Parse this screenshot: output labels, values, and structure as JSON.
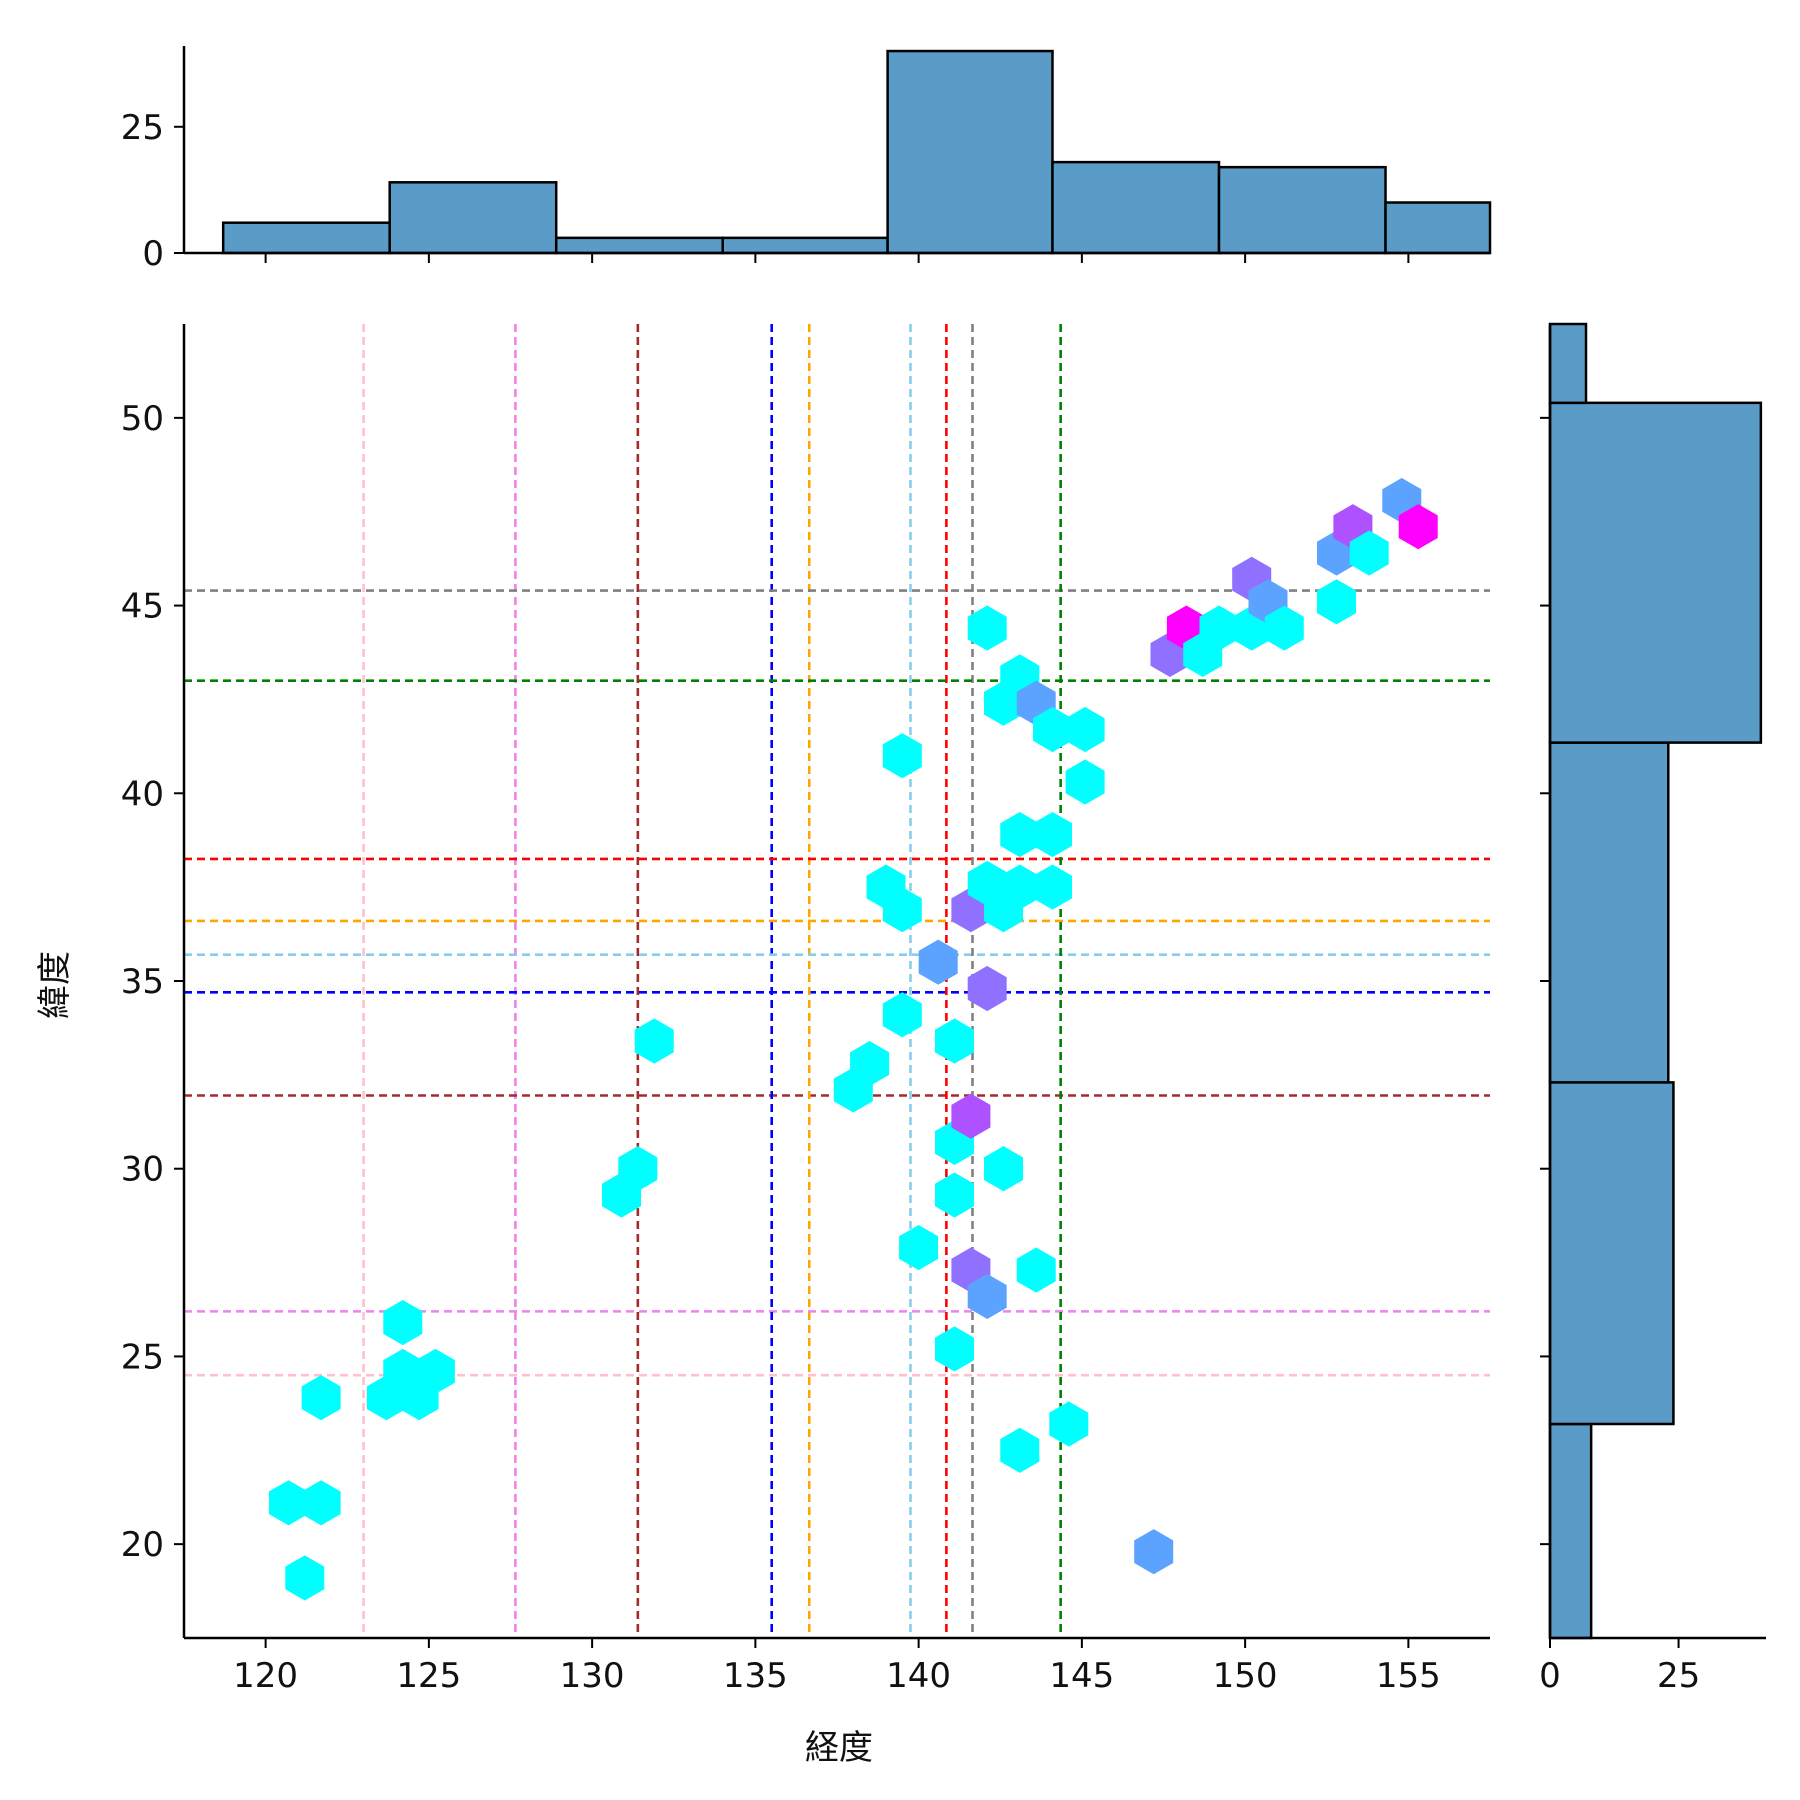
{
  "chart_data": {
    "type": "hexbin-jointplot",
    "xlabel": "経度",
    "ylabel": "緯度",
    "xlim": [
      117.5,
      157.5
    ],
    "ylim": [
      17.5,
      52.5
    ],
    "xticks": [
      120,
      125,
      130,
      135,
      140,
      145,
      150,
      155
    ],
    "yticks": [
      20,
      25,
      30,
      35,
      40,
      45,
      50
    ],
    "colormap": "cool",
    "reference_lines": [
      {
        "color": "#FFC0CB",
        "x": 123.0,
        "y": 24.5
      },
      {
        "color": "#EE82EE",
        "x": 127.65,
        "y": 26.2
      },
      {
        "color": "#A52A2A",
        "x": 131.4,
        "y": 31.95
      },
      {
        "color": "#0000FF",
        "x": 135.5,
        "y": 34.7
      },
      {
        "color": "#FFA500",
        "x": 136.65,
        "y": 36.6
      },
      {
        "color": "#87CEEB",
        "x": 139.75,
        "y": 35.7
      },
      {
        "color": "#FF0000",
        "x": 140.85,
        "y": 38.25
      },
      {
        "color": "#808080",
        "x": 141.65,
        "y": 45.4
      },
      {
        "color": "#008000",
        "x": 144.35,
        "y": 43.0
      }
    ],
    "hexbins": [
      [
        121.2,
        19.1,
        1
      ],
      [
        120.7,
        21.1,
        1
      ],
      [
        121.7,
        21.1,
        1
      ],
      [
        121.7,
        23.9,
        1
      ],
      [
        123.7,
        23.9,
        1
      ],
      [
        124.7,
        23.9,
        1
      ],
      [
        124.2,
        24.6,
        1
      ],
      [
        125.2,
        24.6,
        1
      ],
      [
        124.2,
        25.9,
        1
      ],
      [
        130.9,
        29.3,
        1
      ],
      [
        131.4,
        30.0,
        1
      ],
      [
        131.9,
        33.4,
        1
      ],
      [
        138.0,
        32.1,
        1
      ],
      [
        138.5,
        32.8,
        1
      ],
      [
        139.5,
        34.1,
        1
      ],
      [
        139.0,
        37.5,
        1
      ],
      [
        139.5,
        36.9,
        1
      ],
      [
        139.5,
        41.0,
        1
      ],
      [
        140.0,
        27.9,
        1
      ],
      [
        140.6,
        35.5,
        2
      ],
      [
        141.1,
        25.2,
        1
      ],
      [
        141.1,
        29.3,
        1
      ],
      [
        141.1,
        30.7,
        1
      ],
      [
        141.1,
        33.4,
        1
      ],
      [
        141.6,
        27.3,
        3
      ],
      [
        141.6,
        31.4,
        4
      ],
      [
        141.6,
        36.9,
        3
      ],
      [
        142.1,
        26.6,
        2
      ],
      [
        142.1,
        34.8,
        3
      ],
      [
        142.1,
        37.6,
        1
      ],
      [
        142.1,
        44.4,
        1
      ],
      [
        142.6,
        30.0,
        1
      ],
      [
        142.6,
        36.9,
        1
      ],
      [
        142.6,
        42.4,
        1
      ],
      [
        143.1,
        22.5,
        1
      ],
      [
        143.1,
        37.5,
        1
      ],
      [
        143.1,
        38.9,
        1
      ],
      [
        143.1,
        43.1,
        1
      ],
      [
        143.6,
        27.3,
        1
      ],
      [
        143.6,
        42.4,
        2
      ],
      [
        144.1,
        38.9,
        1
      ],
      [
        144.1,
        37.5,
        1
      ],
      [
        144.1,
        41.7,
        1
      ],
      [
        144.6,
        23.2,
        1
      ],
      [
        145.1,
        40.3,
        1
      ],
      [
        145.1,
        41.7,
        1
      ],
      [
        147.2,
        19.8,
        2
      ],
      [
        147.7,
        43.7,
        3
      ],
      [
        148.2,
        44.4,
        5
      ],
      [
        148.7,
        43.7,
        1
      ],
      [
        149.2,
        44.4,
        1
      ],
      [
        150.2,
        44.4,
        1
      ],
      [
        150.2,
        45.7,
        3
      ],
      [
        150.7,
        45.1,
        2
      ],
      [
        151.2,
        44.4,
        1
      ],
      [
        152.8,
        45.1,
        1
      ],
      [
        152.8,
        46.4,
        2
      ],
      [
        153.3,
        47.1,
        4
      ],
      [
        153.8,
        46.4,
        1
      ],
      [
        154.8,
        47.8,
        2
      ],
      [
        155.3,
        47.1,
        5
      ]
    ],
    "hex_colors": [
      "#00FFFF",
      "#5CA3FF",
      "#8F70FF",
      "#AE51FF",
      "#FF00FF"
    ],
    "marginal_x": {
      "type": "histogram",
      "yticks": [
        0,
        25
      ],
      "bins": [
        {
          "from": 118.7,
          "to": 123.8,
          "count": 6
        },
        {
          "from": 123.8,
          "to": 128.9,
          "count": 14
        },
        {
          "from": 128.9,
          "to": 134.0,
          "count": 3
        },
        {
          "from": 134.0,
          "to": 139.05,
          "count": 3
        },
        {
          "from": 139.05,
          "to": 144.1,
          "count": 40
        },
        {
          "from": 144.1,
          "to": 149.2,
          "count": 18
        },
        {
          "from": 149.2,
          "to": 154.3,
          "count": 17
        },
        {
          "from": 154.3,
          "to": 157.5,
          "count": 10
        }
      ]
    },
    "marginal_y": {
      "type": "histogram",
      "xticks": [
        0,
        25
      ],
      "bins": [
        {
          "from": 17.5,
          "to": 23.2,
          "count": 8
        },
        {
          "from": 23.2,
          "to": 32.3,
          "count": 24
        },
        {
          "from": 32.3,
          "to": 41.35,
          "count": 23
        },
        {
          "from": 41.35,
          "to": 50.4,
          "count": 41
        },
        {
          "from": 50.4,
          "to": 52.5,
          "count": 7
        }
      ]
    }
  }
}
